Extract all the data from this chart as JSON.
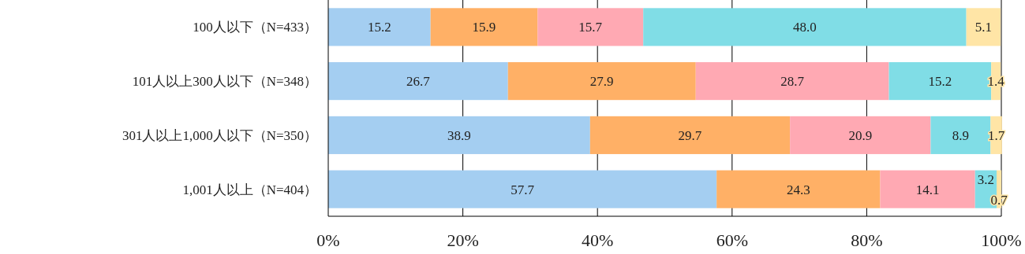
{
  "chart_data": {
    "type": "bar",
    "orientation": "horizontal",
    "stacked": true,
    "categories": [
      "100人以下（N=433）",
      "101人以上300人以下（N=348）",
      "301人以上1,000人以下（N=350）",
      "1,001人以上（N=404）"
    ],
    "series": [
      {
        "color": "#a4cef1",
        "values": [
          15.2,
          26.7,
          38.9,
          57.7
        ],
        "value_labels": [
          "15.2",
          "26.7",
          "38.9",
          "57.7"
        ]
      },
      {
        "color": "#ffb066",
        "values": [
          15.9,
          27.9,
          29.7,
          24.3
        ],
        "value_labels": [
          "15.9",
          "27.9",
          "29.7",
          "24.3"
        ]
      },
      {
        "color": "#ffa9b3",
        "values": [
          15.7,
          28.7,
          20.9,
          14.1
        ],
        "value_labels": [
          "15.7",
          "28.7",
          "20.9",
          "14.1"
        ]
      },
      {
        "color": "#80dde6",
        "values": [
          48.0,
          15.2,
          8.9,
          3.2
        ],
        "value_labels": [
          "48.0",
          "15.2",
          "8.9",
          "3.2"
        ]
      },
      {
        "color": "#ffe5a6",
        "values": [
          5.1,
          1.4,
          1.7,
          0.7
        ],
        "value_labels": [
          "5.1",
          "1.4",
          "1.7",
          "0.7"
        ]
      }
    ],
    "xlim": [
      0,
      100
    ],
    "xticks": [
      {
        "value": 0,
        "label": "0%"
      },
      {
        "value": 20,
        "label": "20%"
      },
      {
        "value": 40,
        "label": "40%"
      },
      {
        "value": 60,
        "label": "60%"
      },
      {
        "value": 80,
        "label": "80%"
      },
      {
        "value": 100,
        "label": "100%"
      }
    ],
    "grid": "x"
  }
}
